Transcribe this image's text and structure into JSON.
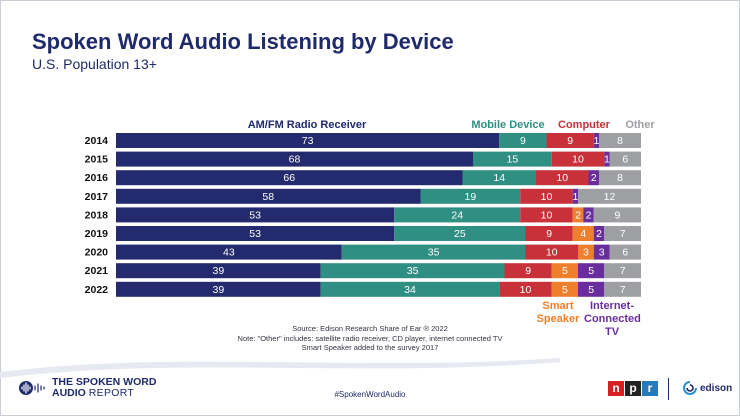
{
  "title": "Spoken Word Audio Listening by Device",
  "subtitle": "U.S. Population 13+",
  "chart_data": {
    "type": "bar",
    "orientation": "horizontal",
    "stacked": true,
    "categories": [
      "2014",
      "2015",
      "2016",
      "2017",
      "2018",
      "2019",
      "2020",
      "2021",
      "2022"
    ],
    "series": [
      {
        "name": "AM/FM Radio Receiver",
        "color": "#232a6e",
        "values": [
          73,
          68,
          66,
          58,
          53,
          53,
          43,
          39,
          39
        ]
      },
      {
        "name": "Mobile Device",
        "color": "#2f8f83",
        "values": [
          9,
          15,
          14,
          19,
          24,
          25,
          35,
          35,
          34
        ]
      },
      {
        "name": "Computer",
        "color": "#c8313a",
        "values": [
          9,
          10,
          10,
          10,
          10,
          9,
          10,
          9,
          10
        ]
      },
      {
        "name": "Smart Speaker",
        "color": "#ee7f2d",
        "values": [
          0,
          0,
          0,
          0,
          2,
          4,
          3,
          5,
          5
        ]
      },
      {
        "name": "Internet-Connected TV",
        "color": "#6a2e9c",
        "values": [
          1,
          1,
          2,
          1,
          2,
          2,
          3,
          5,
          5
        ]
      },
      {
        "name": "Other",
        "color": "#9d9fa3",
        "values": [
          8,
          6,
          8,
          12,
          9,
          7,
          6,
          7,
          7
        ]
      }
    ],
    "legend": {
      "top": [
        {
          "text": "AM/FM Radio Receiver",
          "color": "#1f2a6b"
        },
        {
          "text": "Mobile Device",
          "color": "#2f8f83"
        },
        {
          "text": "Computer",
          "color": "#c8313a"
        },
        {
          "text": "Other",
          "color": "#9d9fa3"
        }
      ],
      "bottom": {
        "smart_line1": "Smart",
        "smart_line2": "Speaker",
        "ictv_line1": "Internet-",
        "ictv_line2": "Connected",
        "ictv_line3": "TV"
      }
    }
  },
  "notes": {
    "source": "Source: Edison Research Share of Ear ® 2022",
    "other": "Note: \"Other\" includes: satellite radio receiver, CD player, internet connected TV",
    "smart": "Smart Speaker added to the survey 2017"
  },
  "footer": {
    "logo_line1": "THE SPOKEN WORD",
    "logo_line2a": "AUDIO",
    "logo_line2b": "REPORT",
    "hashtag": "#SpokenWordAudio",
    "npr": [
      "n",
      "p",
      "r"
    ],
    "edison": "edison"
  },
  "colors": {
    "npr_n": "#d62021",
    "npr_p": "#222222",
    "npr_r": "#237bbd",
    "orange": "#ee7f2d",
    "purple": "#6a2e9c"
  }
}
